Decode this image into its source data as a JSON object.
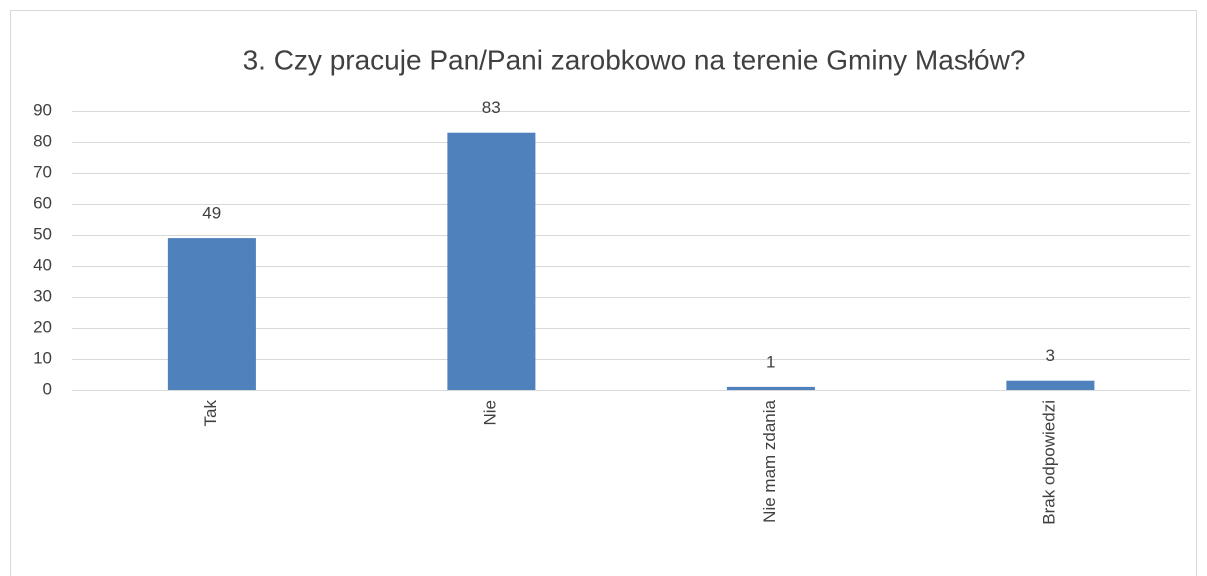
{
  "chart_data": {
    "type": "bar",
    "title": "3. Czy pracuje Pan/Pani zarobkowo na terenie Gminy Masłów?",
    "categories": [
      "Tak",
      "Nie",
      "Nie mam zdania",
      "Brak odpowiedzi"
    ],
    "values": [
      49,
      83,
      1,
      3
    ],
    "color": "#4f81bd",
    "ylim": [
      0,
      90
    ],
    "yticks": [
      0,
      10,
      20,
      30,
      40,
      50,
      60,
      70,
      80,
      90
    ],
    "grid": true,
    "data_labels": true
  }
}
